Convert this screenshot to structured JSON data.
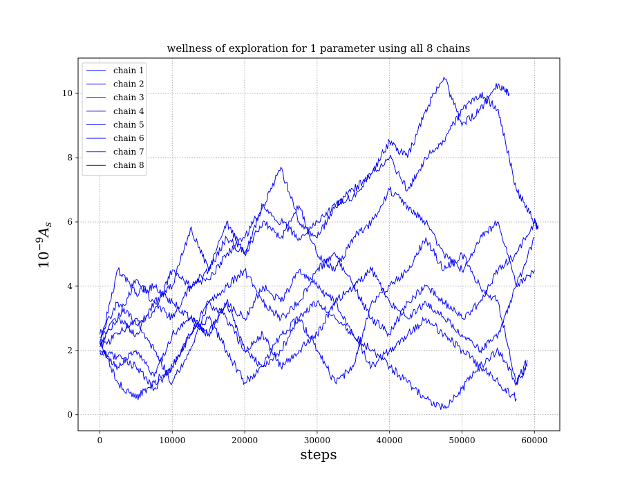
{
  "chart_data": {
    "type": "line",
    "title": "wellness of exploration for 1 parameter using all 8 chains",
    "xlabel": "steps",
    "ylabel": "10^{-9}A_s",
    "xlim": [
      -3000,
      63500
    ],
    "ylim": [
      -0.5,
      11.1
    ],
    "xticks": [
      0,
      10000,
      20000,
      30000,
      40000,
      50000,
      60000
    ],
    "yticks": [
      0,
      2,
      4,
      6,
      8,
      10
    ],
    "grid": true,
    "grid_style": "dotted",
    "legend_position": "top-left",
    "line_color": "#0000ff",
    "series": [
      {
        "name": "chain 1",
        "x": [
          0,
          2500,
          5000,
          7500,
          10000,
          12500,
          15000,
          17500,
          20000,
          22500,
          25000,
          27500,
          30000,
          32500,
          35000,
          37500,
          40000,
          42500,
          45000,
          47500,
          50000,
          52500,
          55000,
          56500
        ],
        "values": [
          2.2,
          3.0,
          4.2,
          3.5,
          4.0,
          5.8,
          4.5,
          6.0,
          5.0,
          6.5,
          6.0,
          5.5,
          6.0,
          6.5,
          7.0,
          7.5,
          8.5,
          8.0,
          9.5,
          10.5,
          9.0,
          9.5,
          10.3,
          10.0
        ]
      },
      {
        "name": "chain 2",
        "x": [
          0,
          2500,
          5000,
          7500,
          10000,
          12500,
          15000,
          17500,
          20000,
          22500,
          25000,
          27500,
          30000,
          32500,
          35000,
          37500,
          40000,
          42500,
          45000,
          47500,
          50000,
          52500,
          55000,
          57500,
          60000,
          60500
        ],
        "values": [
          2.5,
          3.5,
          2.8,
          3.2,
          4.5,
          4.0,
          4.2,
          5.0,
          5.5,
          6.5,
          7.7,
          6.0,
          5.5,
          6.5,
          6.8,
          7.5,
          8.0,
          7.0,
          8.0,
          8.5,
          9.5,
          10.0,
          9.5,
          7.0,
          6.0,
          5.8
        ]
      },
      {
        "name": "chain 3",
        "x": [
          0,
          2500,
          5000,
          7500,
          10000,
          12500,
          15000,
          17500,
          20000,
          22500,
          25000,
          27500,
          30000,
          32500,
          35000,
          37500,
          40000,
          42500,
          45000,
          47500,
          50000,
          52500,
          55000,
          57500,
          59000
        ],
        "values": [
          2.0,
          1.5,
          2.0,
          1.2,
          2.5,
          3.0,
          2.5,
          3.5,
          2.0,
          1.5,
          2.5,
          3.0,
          2.0,
          1.0,
          1.5,
          3.5,
          4.0,
          4.5,
          5.5,
          4.5,
          5.0,
          4.0,
          3.5,
          1.0,
          1.5
        ]
      },
      {
        "name": "chain 4",
        "x": [
          0,
          2500,
          5000,
          7500,
          10000,
          12500,
          15000,
          17500,
          20000,
          22500,
          25000,
          27500,
          30000,
          32500,
          35000,
          37500,
          40000,
          42500,
          45000,
          47500,
          50000,
          52500,
          55000,
          57500
        ],
        "values": [
          2.3,
          1.0,
          0.5,
          1.0,
          1.5,
          2.5,
          3.5,
          3.0,
          2.0,
          2.5,
          1.5,
          2.0,
          2.5,
          3.5,
          2.5,
          2.0,
          1.5,
          1.0,
          0.5,
          0.2,
          0.8,
          1.5,
          1.0,
          0.5
        ]
      },
      {
        "name": "chain 5",
        "x": [
          0,
          2500,
          5000,
          7500,
          10000,
          12500,
          15000,
          17500,
          20000,
          22500,
          25000,
          27500,
          30000,
          32500,
          35000,
          37500,
          40000,
          42500,
          45000,
          47500,
          50000,
          52500,
          55000,
          57500,
          60000
        ],
        "values": [
          2.1,
          2.5,
          3.0,
          2.0,
          1.0,
          2.0,
          3.5,
          4.0,
          4.5,
          3.5,
          3.0,
          3.5,
          4.5,
          5.0,
          4.0,
          3.0,
          2.5,
          3.5,
          4.0,
          3.5,
          3.0,
          3.5,
          4.5,
          5.0,
          6.0
        ]
      },
      {
        "name": "chain 6",
        "x": [
          0,
          2500,
          5000,
          7500,
          10000,
          12500,
          15000,
          17500,
          20000,
          22500,
          25000,
          27500,
          30000,
          32500,
          35000,
          37500,
          40000,
          42500,
          45000,
          47500,
          50000,
          52500,
          55000,
          57500,
          60000
        ],
        "values": [
          2.4,
          3.0,
          2.5,
          3.5,
          3.0,
          4.0,
          4.5,
          5.5,
          5.0,
          6.0,
          5.5,
          6.5,
          5.0,
          4.5,
          5.5,
          6.0,
          7.0,
          6.5,
          6.0,
          5.0,
          4.5,
          5.5,
          6.0,
          4.0,
          4.5
        ]
      },
      {
        "name": "chain 7",
        "x": [
          0,
          2500,
          5000,
          7500,
          10000,
          12500,
          15000,
          17500,
          20000,
          22500,
          25000,
          27500,
          30000,
          32500,
          35000,
          37500,
          40000,
          42500,
          45000,
          47500,
          50000,
          52500,
          55000,
          57500,
          59000
        ],
        "values": [
          2.0,
          1.8,
          1.5,
          0.8,
          1.5,
          2.5,
          3.0,
          2.0,
          1.0,
          1.5,
          2.0,
          3.0,
          3.5,
          3.0,
          2.5,
          1.5,
          2.0,
          2.5,
          3.0,
          2.5,
          2.0,
          1.5,
          2.0,
          1.0,
          1.7
        ]
      },
      {
        "name": "chain 8",
        "x": [
          0,
          2500,
          5000,
          7500,
          10000,
          12500,
          15000,
          17500,
          20000,
          22500,
          25000,
          27500,
          30000,
          32500,
          35000,
          37500,
          40000,
          42500,
          45000,
          47500,
          50000,
          52500,
          55000,
          57500,
          60000
        ],
        "values": [
          2.2,
          4.5,
          3.8,
          4.0,
          3.5,
          3.0,
          2.5,
          3.5,
          3.0,
          4.0,
          3.5,
          4.5,
          4.0,
          3.5,
          4.0,
          4.5,
          3.5,
          3.0,
          3.5,
          3.0,
          2.5,
          2.0,
          2.5,
          4.0,
          5.5
        ]
      }
    ]
  }
}
